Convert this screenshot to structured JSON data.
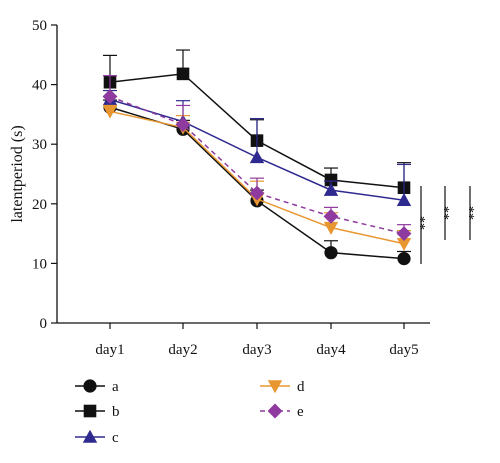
{
  "chart_data": {
    "type": "line",
    "title": "",
    "xlabel": "",
    "ylabel": "latentperiod (s)",
    "categories": [
      "day1",
      "day2",
      "day3",
      "day4",
      "day5"
    ],
    "ylim": [
      0,
      50
    ],
    "yticks": [
      0,
      10,
      20,
      30,
      40,
      50
    ],
    "grid": false,
    "legend_position": "bottom",
    "series": [
      {
        "name": "a",
        "values": [
          36.2,
          32.5,
          20.5,
          11.8,
          10.8
        ],
        "errors": [
          1.2,
          1.5,
          1.8,
          2.0,
          1.2
        ],
        "color": "#111111",
        "marker": "circle",
        "dashed": false
      },
      {
        "name": "b",
        "values": [
          40.4,
          41.8,
          30.6,
          24.0,
          22.7
        ],
        "errors": [
          4.5,
          4.0,
          3.5,
          2.0,
          4.2
        ],
        "color": "#111111",
        "marker": "square",
        "dashed": false
      },
      {
        "name": "c",
        "values": [
          37.5,
          33.8,
          27.8,
          22.3,
          20.6
        ],
        "errors": [
          1.5,
          3.5,
          6.5,
          1.5,
          6.0
        ],
        "color": "#2e2a8f",
        "marker": "triangle-up",
        "dashed": false
      },
      {
        "name": "d",
        "values": [
          35.5,
          32.8,
          20.8,
          16.0,
          13.3
        ],
        "errors": [
          1.0,
          2.0,
          3.0,
          2.5,
          2.2
        ],
        "color": "#e8962f",
        "marker": "triangle-down",
        "dashed": false
      },
      {
        "name": "e",
        "values": [
          38.0,
          33.3,
          21.8,
          17.9,
          15.0
        ],
        "errors": [
          3.5,
          3.2,
          2.5,
          1.5,
          1.5
        ],
        "color": "#8e3a9e",
        "marker": "diamond",
        "dashed": true
      }
    ],
    "significance": [
      {
        "label": "**"
      },
      {
        "label": "**"
      },
      {
        "label": "**"
      }
    ]
  }
}
